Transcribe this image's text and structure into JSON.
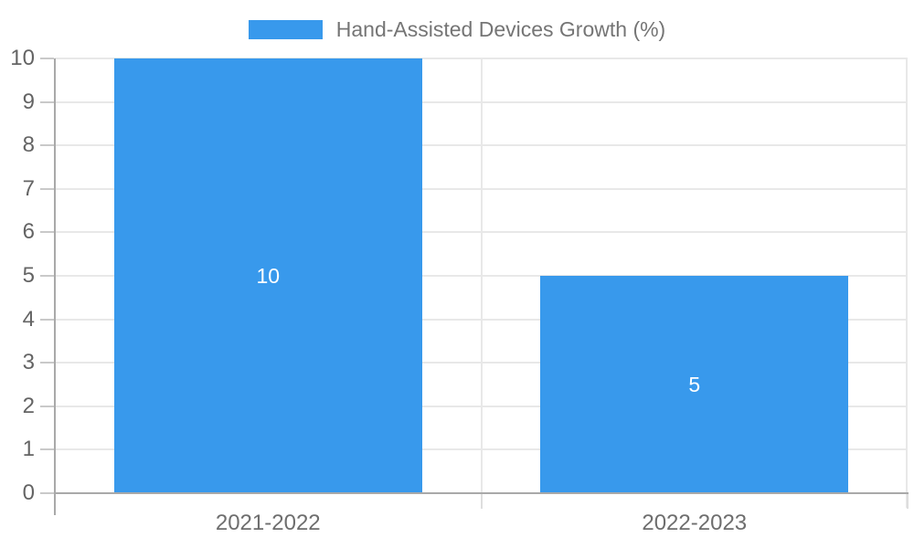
{
  "chart_data": {
    "type": "bar",
    "legend_label": "Hand-Assisted Devices Growth (%)",
    "categories": [
      "2021-2022",
      "2022-2023"
    ],
    "values": [
      10,
      5
    ],
    "value_labels": [
      "10",
      "5"
    ],
    "ylim": [
      0,
      10
    ],
    "yticks": [
      0,
      1,
      2,
      3,
      4,
      5,
      6,
      7,
      8,
      9,
      10
    ],
    "grid": true,
    "legend_position": "top-center",
    "bar_width_fraction": 0.722,
    "colors": {
      "bar": "#3899EC",
      "value_label": "#FFFFFF",
      "grid": "#E8E8E8",
      "axis_line": "#A9A9A9",
      "y_tick": "#C9C9C9",
      "x_tick": "#DEDEDE",
      "y_tick_label": "#646464",
      "x_tick_label": "#6E6E6E",
      "legend_text": "#757575",
      "background": "#FFFFFF"
    }
  }
}
